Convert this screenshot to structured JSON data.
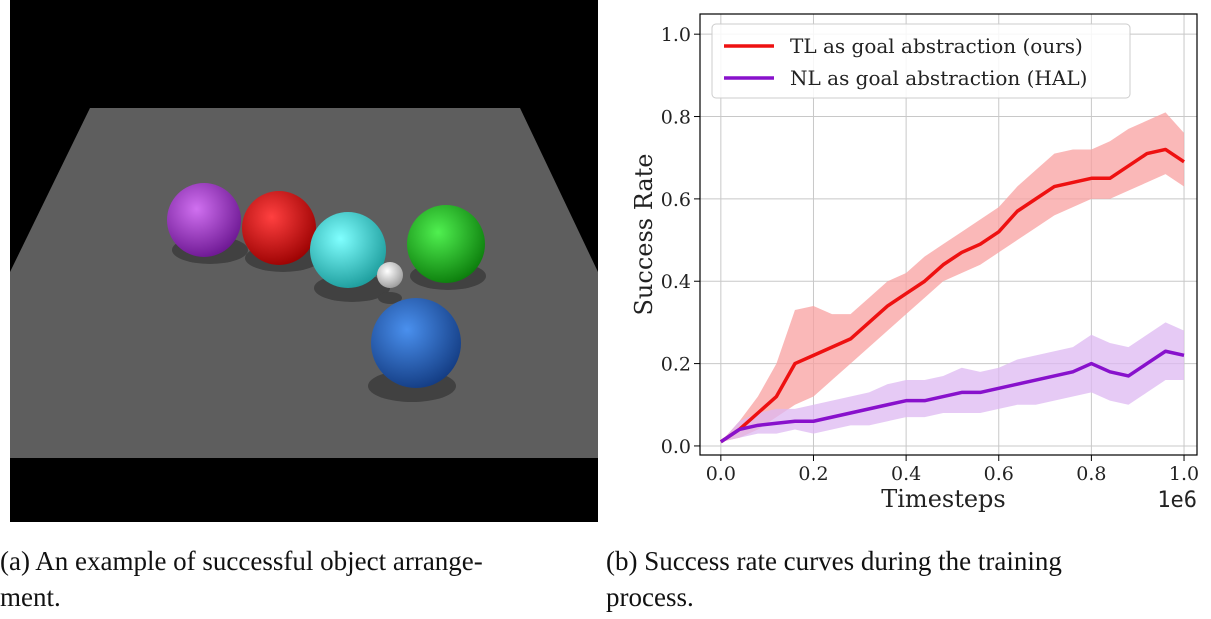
{
  "figure": {
    "captions": [
      {
        "lines": [
          "(a) An example of successful object arrange-",
          "ment."
        ]
      },
      {
        "lines": [
          "(b) Success rate curves during the training",
          "process."
        ]
      }
    ]
  },
  "chart_data": {
    "type": "line",
    "xlabel": "Timesteps",
    "ylabel": "Success Rate",
    "x_offset_label": "1e6",
    "x": [
      0,
      0.04,
      0.08,
      0.12,
      0.16,
      0.2,
      0.24,
      0.28,
      0.32,
      0.36,
      0.4,
      0.44,
      0.48,
      0.52,
      0.56,
      0.6,
      0.64,
      0.68,
      0.72,
      0.76,
      0.8,
      0.84,
      0.88,
      0.92,
      0.96,
      1.0
    ],
    "series": [
      {
        "name": "TL as goal abstraction (ours)",
        "color": "#ee1111",
        "band_color": "#f8a0a0",
        "values": [
          0.01,
          0.04,
          0.08,
          0.12,
          0.2,
          0.22,
          0.24,
          0.26,
          0.3,
          0.34,
          0.37,
          0.4,
          0.44,
          0.47,
          0.49,
          0.52,
          0.57,
          0.6,
          0.63,
          0.64,
          0.65,
          0.65,
          0.68,
          0.71,
          0.72,
          0.69
        ],
        "lower": [
          0.01,
          0.02,
          0.04,
          0.07,
          0.1,
          0.12,
          0.16,
          0.2,
          0.24,
          0.28,
          0.32,
          0.36,
          0.4,
          0.42,
          0.44,
          0.47,
          0.5,
          0.53,
          0.56,
          0.58,
          0.6,
          0.6,
          0.62,
          0.64,
          0.66,
          0.63
        ],
        "upper": [
          0.01,
          0.06,
          0.12,
          0.2,
          0.33,
          0.34,
          0.32,
          0.32,
          0.36,
          0.4,
          0.42,
          0.46,
          0.49,
          0.52,
          0.55,
          0.58,
          0.63,
          0.67,
          0.71,
          0.72,
          0.72,
          0.74,
          0.77,
          0.79,
          0.81,
          0.76
        ]
      },
      {
        "name": "NL as goal abstraction (HAL)",
        "color": "#8811cc",
        "band_color": "#ddb8f2",
        "values": [
          0.01,
          0.04,
          0.05,
          0.055,
          0.06,
          0.06,
          0.07,
          0.08,
          0.09,
          0.1,
          0.11,
          0.11,
          0.12,
          0.13,
          0.13,
          0.14,
          0.15,
          0.16,
          0.17,
          0.18,
          0.2,
          0.18,
          0.17,
          0.2,
          0.23,
          0.22
        ],
        "lower": [
          0.01,
          0.02,
          0.03,
          0.03,
          0.04,
          0.03,
          0.04,
          0.05,
          0.05,
          0.06,
          0.07,
          0.07,
          0.08,
          0.08,
          0.08,
          0.09,
          0.1,
          0.1,
          0.11,
          0.12,
          0.13,
          0.11,
          0.1,
          0.13,
          0.16,
          0.16
        ],
        "upper": [
          0.01,
          0.06,
          0.08,
          0.09,
          0.09,
          0.1,
          0.11,
          0.12,
          0.13,
          0.15,
          0.16,
          0.16,
          0.17,
          0.19,
          0.18,
          0.19,
          0.21,
          0.22,
          0.23,
          0.24,
          0.27,
          0.25,
          0.24,
          0.27,
          0.3,
          0.28
        ]
      }
    ],
    "xlim": [
      -0.045,
      1.028
    ],
    "ylim": [
      -0.022,
      1.049
    ],
    "xticks": [
      {
        "value": 0,
        "label": "0.0"
      },
      {
        "value": 0.2,
        "label": "0.2"
      },
      {
        "value": 0.4,
        "label": "0.4"
      },
      {
        "value": 0.6,
        "label": "0.6"
      },
      {
        "value": 0.8,
        "label": "0.8"
      },
      {
        "value": 1,
        "label": "1.0"
      }
    ],
    "yticks": [
      {
        "value": 0,
        "label": "0.0"
      },
      {
        "value": 0.2,
        "label": "0.2"
      },
      {
        "value": 0.4,
        "label": "0.4"
      },
      {
        "value": 0.6,
        "label": "0.6"
      },
      {
        "value": 0.8,
        "label": "0.8"
      },
      {
        "value": 1,
        "label": "1.0"
      }
    ],
    "grid": true,
    "legend": "upper left"
  }
}
